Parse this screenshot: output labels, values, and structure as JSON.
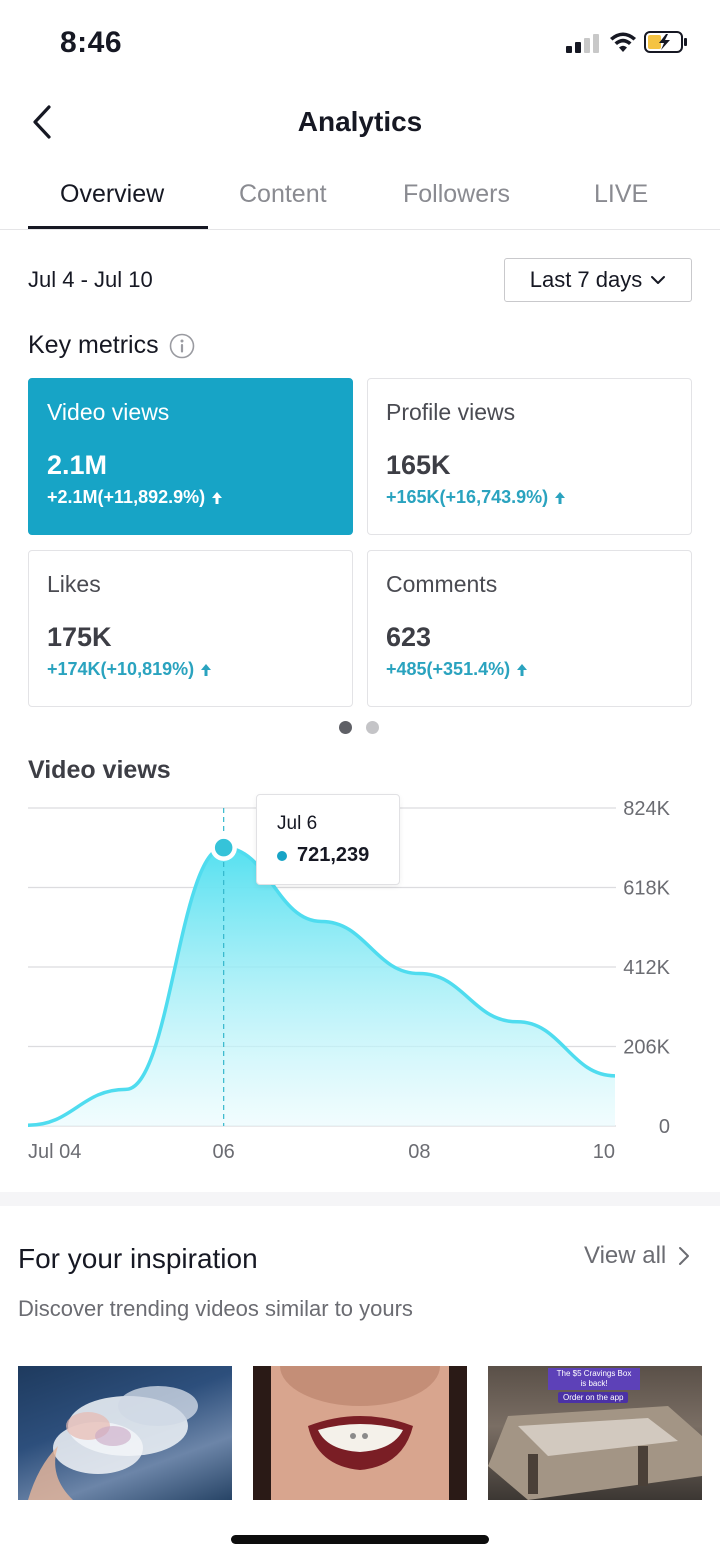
{
  "status_bar": {
    "time": "8:46"
  },
  "header": {
    "title": "Analytics"
  },
  "tabs": [
    {
      "label": "Overview"
    },
    {
      "label": "Content"
    },
    {
      "label": "Followers"
    },
    {
      "label": "LIVE"
    }
  ],
  "date_range": "Jul 4 - Jul 10",
  "range_select": {
    "value": "Last 7 days"
  },
  "key_metrics": {
    "title": "Key metrics",
    "cards": [
      {
        "label": "Video views",
        "value": "2.1M",
        "delta": "+2.1M(+11,892.9%)"
      },
      {
        "label": "Profile views",
        "value": "165K",
        "delta": "+165K(+16,743.9%)"
      },
      {
        "label": "Likes",
        "value": "175K",
        "delta": "+174K(+10,819%)"
      },
      {
        "label": "Comments",
        "value": "623",
        "delta": "+485(+351.4%)"
      }
    ]
  },
  "chart_data": {
    "type": "area",
    "title": "Video views",
    "x": [
      "Jul 04",
      "Jul 05",
      "Jul 06",
      "Jul 07",
      "Jul 08",
      "Jul 09",
      "Jul 10"
    ],
    "values": [
      2000,
      95000,
      721239,
      530000,
      395000,
      270000,
      130000
    ],
    "x_tick_labels": [
      "Jul 04",
      "06",
      "08",
      "10"
    ],
    "y_tick_labels": [
      "824K",
      "618K",
      "412K",
      "206K",
      "0"
    ],
    "ylim": [
      0,
      824000
    ],
    "grid": true,
    "color": "#4fdcef",
    "tooltip": {
      "date": "Jul 6",
      "value": "721,239"
    }
  },
  "inspiration": {
    "title": "For your inspiration",
    "view_all": "View all",
    "subtitle": "Discover trending videos similar to yours",
    "thumb3_banner_line1": "The $5 Cravings Box",
    "thumb3_banner_line2": "is back!",
    "thumb3_badge": "Order on the app"
  }
}
